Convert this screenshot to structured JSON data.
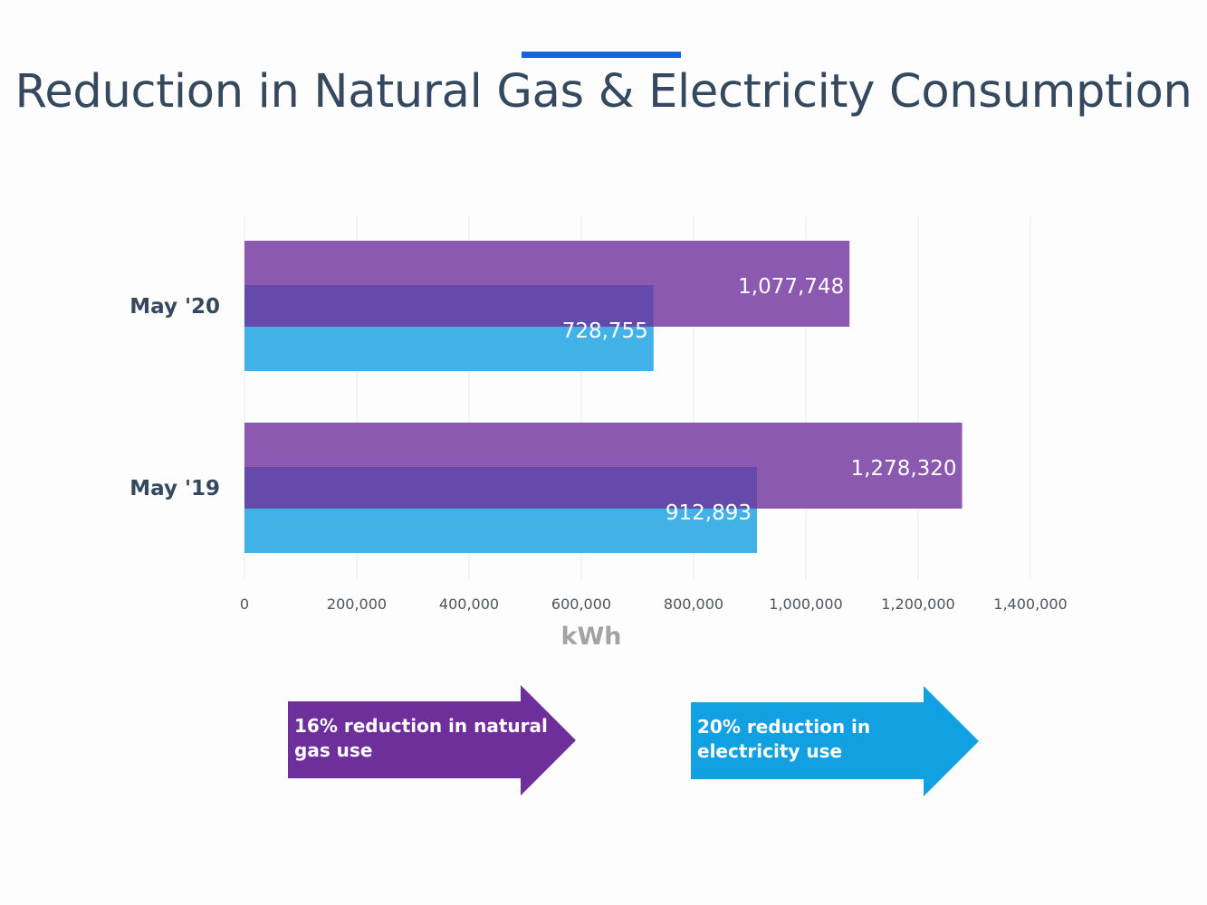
{
  "title": "Reduction in Natural Gas & Electricity Consumption",
  "colors": {
    "title_accent": "#1565d8",
    "gas": "#8b59b0",
    "overlap": "#6549ab",
    "electricity": "#41b1e8",
    "gas_callout": "#6e2f9b",
    "electricity_callout": "#11a0e2"
  },
  "chart_data": {
    "type": "bar",
    "orientation": "horizontal",
    "categories": [
      "May '20",
      "May '19"
    ],
    "series": [
      {
        "values": [
          1077748,
          1278320
        ],
        "labels": [
          "1,077,748",
          "1,278,320"
        ]
      },
      {
        "values": [
          728755,
          912893
        ],
        "labels": [
          "728,755",
          "912,893"
        ]
      }
    ],
    "xlabel": "kWh",
    "xlim": [
      0,
      1400000
    ],
    "xticks": [
      0,
      200000,
      400000,
      600000,
      800000,
      1000000,
      1200000,
      1400000
    ],
    "xtick_labels": [
      "0",
      "200,000",
      "400,000",
      "600,000",
      "800,000",
      "1,000,000",
      "1,200,000",
      "1,400,000"
    ],
    "grid": true
  },
  "callouts": {
    "gas": "16% reduction in natural gas use",
    "electricity": "20% reduction in electricity use"
  }
}
